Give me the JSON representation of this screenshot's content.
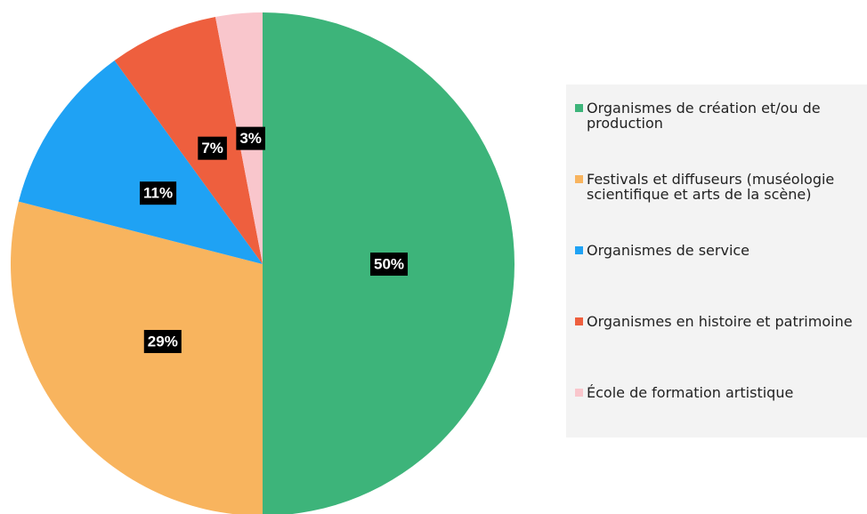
{
  "chart_data": {
    "type": "pie",
    "categories": [
      "Organismes de création et/ou de production",
      "Festivals et diffuseurs (muséologie scientifique et arts de la scène)",
      "Organismes de service",
      "Organismes en histoire et patrimoine",
      "École de formation artistique"
    ],
    "values": [
      50,
      29,
      11,
      7,
      3
    ],
    "value_labels": [
      "50%",
      "29%",
      "11%",
      "7%",
      "3%"
    ],
    "colors": [
      "#3db47a",
      "#f8b45e",
      "#1fa2f4",
      "#ee5f3e",
      "#f9c6cc"
    ],
    "legend": "right"
  }
}
